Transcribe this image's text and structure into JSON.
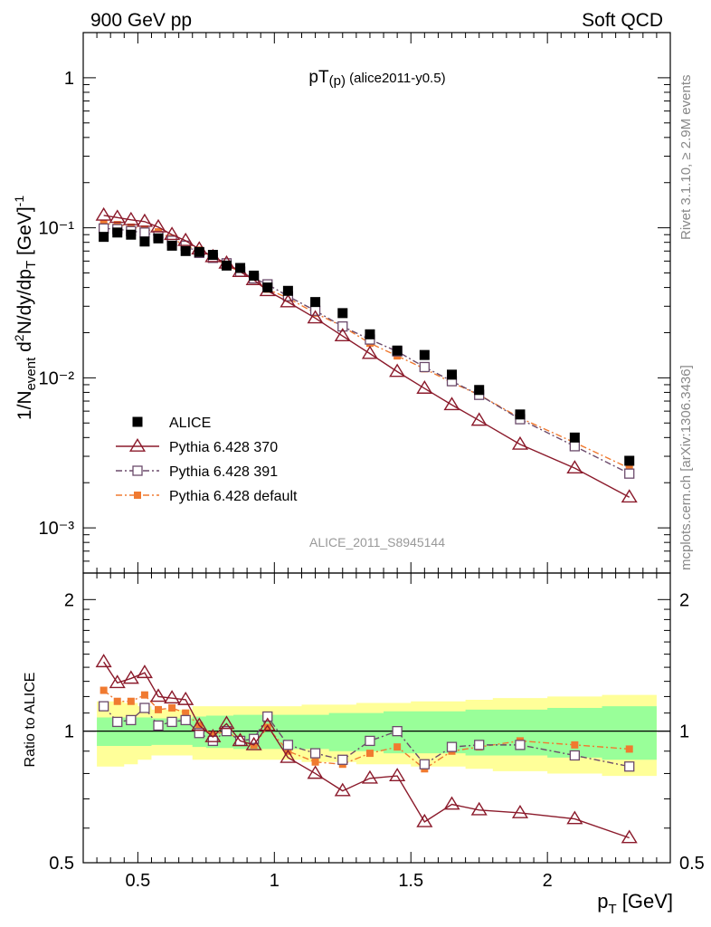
{
  "header": {
    "left": "900 GeV pp",
    "right": "Soft QCD"
  },
  "side_labels": {
    "rivet": "Rivet 3.1.10, ≥ 2.9M events",
    "mcplots": "mcplots.cern.ch [arXiv:1306.3436]"
  },
  "chart_data": {
    "type": "line",
    "title": "pT(p) (alice2011-y0.5)",
    "analysis_label": "ALICE_2011_S8945144",
    "xlabel": "p_T [GeV]",
    "ylabel_main": "1/N_event d²N/dy/dp_T [GeV]⁻¹",
    "ylabel_ratio": "Ratio to ALICE",
    "xlim": [
      0.3,
      2.45
    ],
    "ylim_main": [
      0.0005,
      2.0
    ],
    "ylim_ratio": [
      0.5,
      2.3
    ],
    "yscale_main": "log",
    "yscale_ratio": "log",
    "x_ticks": [
      "0.5",
      "1",
      "1.5",
      "2"
    ],
    "main_y_ticks": [
      "10⁻³",
      "10⁻²",
      "10⁻¹",
      "1"
    ],
    "ratio_y_ticks": [
      "0.5",
      "1",
      "2"
    ],
    "legend_position": "lower-left",
    "x": [
      0.375,
      0.425,
      0.475,
      0.525,
      0.575,
      0.625,
      0.675,
      0.725,
      0.775,
      0.825,
      0.875,
      0.925,
      0.975,
      1.05,
      1.15,
      1.25,
      1.35,
      1.45,
      1.55,
      1.65,
      1.75,
      1.9,
      2.1,
      2.3
    ],
    "series": [
      {
        "name": "ALICE",
        "color": "#000000",
        "marker": "filled-square",
        "line": "none",
        "values": [
          0.087,
          0.093,
          0.09,
          0.081,
          0.085,
          0.076,
          0.07,
          0.069,
          0.066,
          0.056,
          0.054,
          0.048,
          0.04,
          0.038,
          0.032,
          0.027,
          0.0195,
          0.0152,
          0.0142,
          0.0105,
          0.0083,
          0.0057,
          0.004,
          0.0028
        ]
      },
      {
        "name": "Pythia 6.428 370",
        "color": "#8b1a2b",
        "marker": "open-triangle",
        "line": "solid",
        "values": [
          0.121,
          0.117,
          0.113,
          0.11,
          0.101,
          0.09,
          0.082,
          0.072,
          0.064,
          0.058,
          0.051,
          0.045,
          0.038,
          0.032,
          0.025,
          0.019,
          0.0145,
          0.011,
          0.0085,
          0.0066,
          0.0052,
          0.0036,
          0.0025,
          0.0016
        ]
      },
      {
        "name": "Pythia 6.428 391",
        "color": "#6b4a6b",
        "marker": "open-square",
        "line": "dash-dot",
        "values": [
          0.099,
          0.098,
          0.095,
          0.093,
          0.088,
          0.082,
          0.076,
          0.068,
          0.063,
          0.058,
          0.051,
          0.046,
          0.042,
          0.035,
          0.028,
          0.022,
          0.018,
          0.015,
          0.0118,
          0.0095,
          0.0077,
          0.0053,
          0.0035,
          0.0023
        ]
      },
      {
        "name": "Pythia 6.428 default",
        "color": "#f07a30",
        "marker": "filled-square",
        "line": "dash-dot",
        "values": [
          0.107,
          0.105,
          0.101,
          0.098,
          0.094,
          0.085,
          0.076,
          0.071,
          0.064,
          0.056,
          0.051,
          0.045,
          0.039,
          0.034,
          0.027,
          0.022,
          0.017,
          0.014,
          0.0115,
          0.0093,
          0.0077,
          0.0054,
          0.0037,
          0.0025
        ]
      }
    ],
    "ratio": {
      "band_inner": [
        0.075,
        0.075,
        0.075,
        0.075,
        0.07,
        0.07,
        0.07,
        0.08,
        0.085,
        0.085,
        0.09,
        0.09,
        0.09,
        0.09,
        0.09,
        0.1,
        0.1,
        0.11,
        0.11,
        0.11,
        0.12,
        0.12,
        0.13,
        0.14
      ],
      "band_outer": [
        0.17,
        0.17,
        0.16,
        0.14,
        0.12,
        0.12,
        0.12,
        0.14,
        0.14,
        0.14,
        0.14,
        0.14,
        0.14,
        0.14,
        0.15,
        0.15,
        0.16,
        0.16,
        0.17,
        0.17,
        0.18,
        0.19,
        0.2,
        0.21
      ],
      "series": [
        {
          "name": "Pythia 6.428 370",
          "values": [
            1.44,
            1.29,
            1.32,
            1.36,
            1.2,
            1.19,
            1.18,
            1.03,
            0.97,
            1.04,
            0.95,
            0.93,
            1.03,
            0.87,
            0.8,
            0.73,
            0.78,
            0.79,
            0.62,
            0.68,
            0.66,
            0.65,
            0.63,
            0.57
          ]
        },
        {
          "name": "Pythia 6.428 391",
          "values": [
            1.14,
            1.05,
            1.06,
            1.13,
            1.03,
            1.05,
            1.06,
            0.99,
            0.95,
            1.0,
            0.95,
            0.96,
            1.08,
            0.93,
            0.89,
            0.86,
            0.95,
            1.0,
            0.84,
            0.92,
            0.93,
            0.93,
            0.88,
            0.83
          ]
        },
        {
          "name": "Pythia 6.428 default",
          "values": [
            1.24,
            1.17,
            1.17,
            1.21,
            1.12,
            1.13,
            1.1,
            1.03,
            0.98,
            1.0,
            0.95,
            0.93,
            1.02,
            0.9,
            0.85,
            0.84,
            0.89,
            0.92,
            0.82,
            0.9,
            0.92,
            0.95,
            0.93,
            0.91
          ]
        }
      ]
    }
  }
}
